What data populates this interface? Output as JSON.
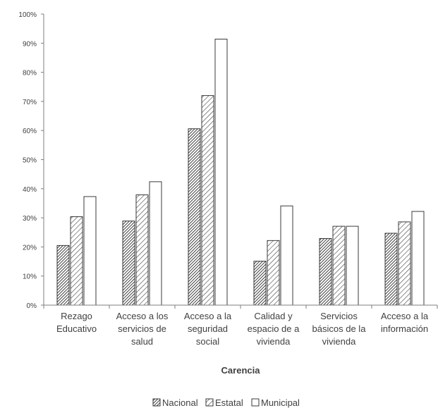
{
  "chart_data": {
    "type": "bar",
    "title": "",
    "xlabel": "Carencia",
    "ylabel": "",
    "ylim": [
      0,
      1
    ],
    "y_ticks": [
      "0%",
      "10%",
      "20%",
      "30%",
      "40%",
      "50%",
      "60%",
      "70%",
      "80%",
      "90%",
      "100%"
    ],
    "categories": [
      [
        "Rezago",
        "Educativo"
      ],
      [
        "Acceso a los",
        "servicios de",
        "salud"
      ],
      [
        "Acceso a la",
        "seguridad",
        "social"
      ],
      [
        "Calidad y",
        "espacio de a",
        "vivienda"
      ],
      [
        "Servicios",
        "básicos de la",
        "vivienda"
      ],
      [
        "Acceso a la",
        "información"
      ]
    ],
    "series": [
      {
        "name": "Nacional",
        "pattern": "dense-hatch",
        "values": [
          0.205,
          0.289,
          0.606,
          0.151,
          0.229,
          0.247
        ]
      },
      {
        "name": "Estatal",
        "pattern": "diagonal-hatch",
        "values": [
          0.304,
          0.379,
          0.72,
          0.222,
          0.271,
          0.286
        ]
      },
      {
        "name": "Municipal",
        "pattern": "white",
        "values": [
          0.373,
          0.424,
          0.914,
          0.341,
          0.271,
          0.322
        ]
      }
    ],
    "grid": false,
    "legend": "bottom"
  }
}
